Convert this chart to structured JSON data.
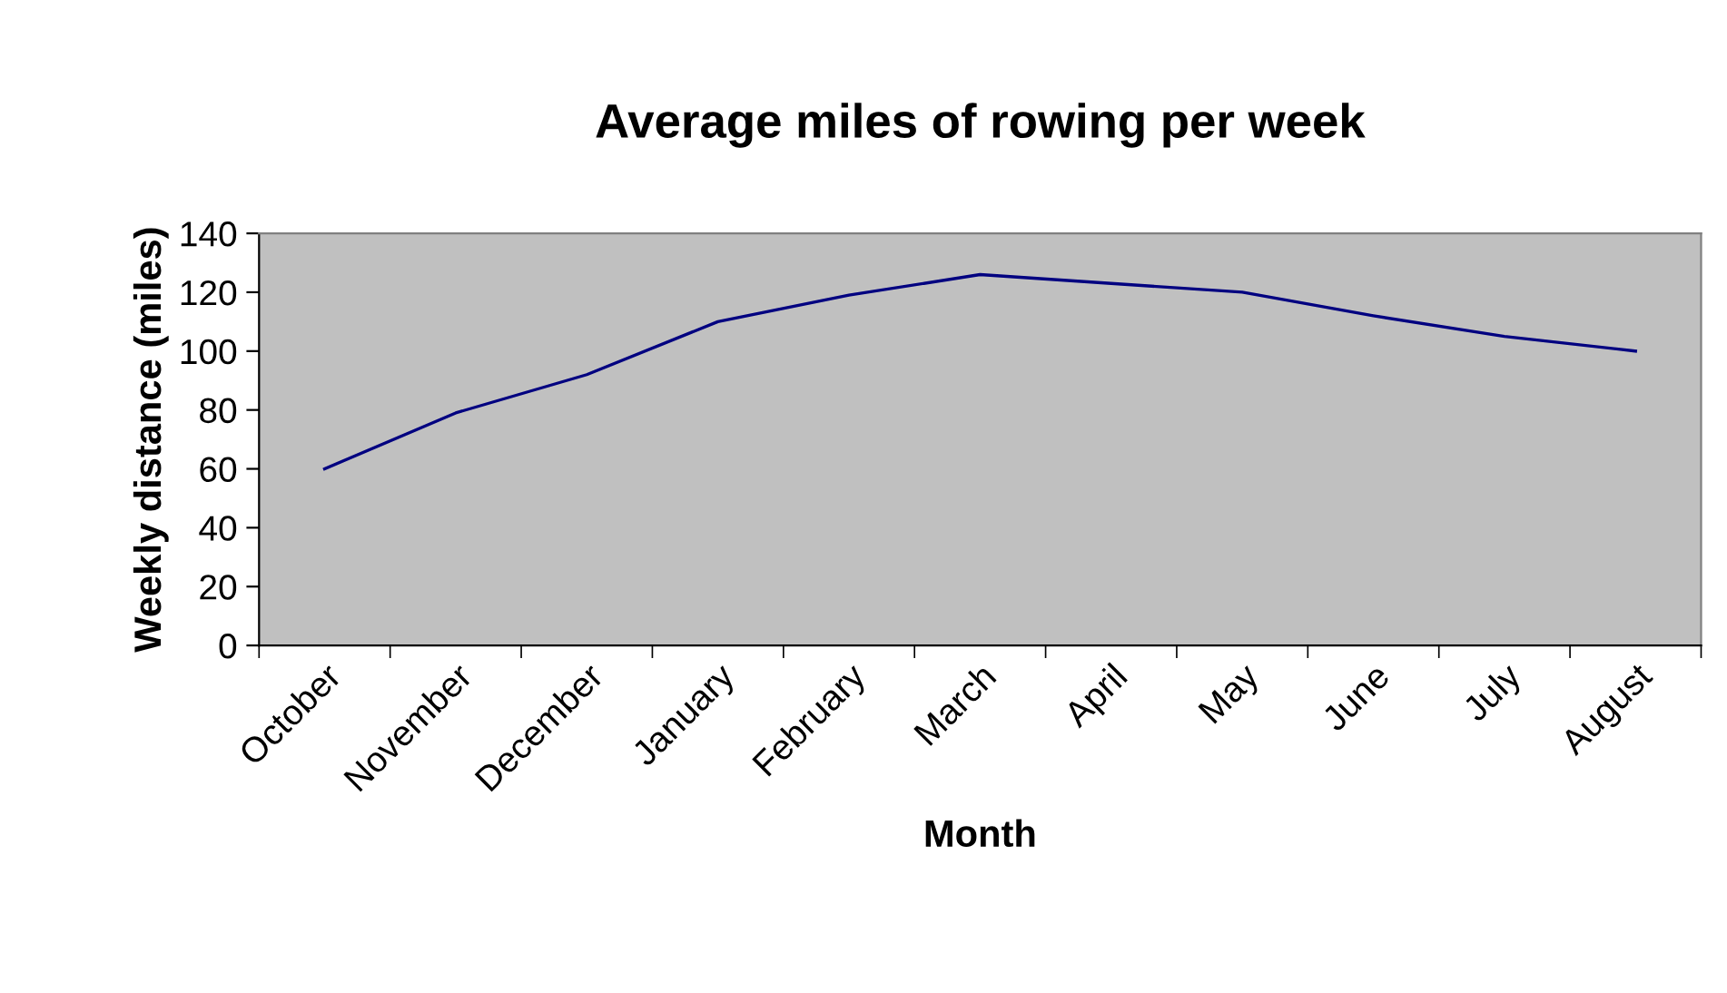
{
  "chart_data": {
    "type": "line",
    "title": "Average miles of rowing per week",
    "xlabel": "Month",
    "ylabel": "Weekly distance (miles)",
    "categories": [
      "October",
      "November",
      "December",
      "January",
      "February",
      "March",
      "April",
      "May",
      "June",
      "July",
      "August"
    ],
    "series": [
      {
        "color": "#000080",
        "values": [
          60,
          79,
          92,
          110,
          119,
          126,
          123,
          120,
          112,
          105,
          100
        ]
      }
    ],
    "ylim": [
      0,
      140
    ],
    "yticks": [
      0,
      20,
      40,
      60,
      80,
      100,
      120,
      140
    ],
    "grid": false,
    "legend": false,
    "marker": "none",
    "line_style": "solid"
  }
}
